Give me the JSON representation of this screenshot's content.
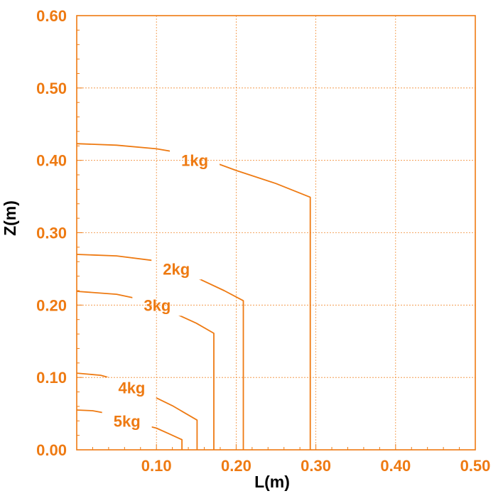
{
  "chart_data": {
    "type": "line",
    "title": "",
    "xlabel": "L(m)",
    "ylabel": "Z(m)",
    "xlim": [
      0,
      0.5
    ],
    "ylim": [
      0,
      0.6
    ],
    "x_ticks": [
      "0.10",
      "0.20",
      "0.30",
      "0.40",
      "0.50"
    ],
    "y_ticks": [
      "0.00",
      "0.10",
      "0.20",
      "0.30",
      "0.40",
      "0.50",
      "0.60"
    ],
    "grid": true,
    "color": "#ee7a12",
    "series": [
      {
        "name": "1kg",
        "label_at": [
          0.148,
          0.4
        ],
        "points": [
          [
            0,
            0.423
          ],
          [
            0.05,
            0.421
          ],
          [
            0.1,
            0.416
          ],
          [
            0.148,
            0.407
          ],
          [
            0.2,
            0.386
          ],
          [
            0.25,
            0.368
          ],
          [
            0.293,
            0.349
          ],
          [
            0.293,
            0
          ]
        ]
      },
      {
        "name": "2kg",
        "label_at": [
          0.125,
          0.25
        ],
        "points": [
          [
            0,
            0.27
          ],
          [
            0.05,
            0.268
          ],
          [
            0.1,
            0.261
          ],
          [
            0.125,
            0.25
          ],
          [
            0.15,
            0.238
          ],
          [
            0.185,
            0.22
          ],
          [
            0.209,
            0.206
          ],
          [
            0.209,
            0
          ]
        ]
      },
      {
        "name": "3kg",
        "label_at": [
          0.101,
          0.2
        ],
        "points": [
          [
            0,
            0.219
          ],
          [
            0.05,
            0.215
          ],
          [
            0.08,
            0.208
          ],
          [
            0.101,
            0.2
          ],
          [
            0.12,
            0.19
          ],
          [
            0.15,
            0.175
          ],
          [
            0.172,
            0.161
          ],
          [
            0.172,
            0
          ]
        ]
      },
      {
        "name": "4kg",
        "label_at": [
          0.069,
          0.086
        ],
        "points": [
          [
            0,
            0.106
          ],
          [
            0.03,
            0.103
          ],
          [
            0.05,
            0.097
          ],
          [
            0.069,
            0.086
          ],
          [
            0.09,
            0.077
          ],
          [
            0.12,
            0.061
          ],
          [
            0.151,
            0.041
          ],
          [
            0.151,
            0
          ]
        ]
      },
      {
        "name": "5kg",
        "label_at": [
          0.063,
          0.04
        ],
        "points": [
          [
            0,
            0.055
          ],
          [
            0.02,
            0.054
          ],
          [
            0.04,
            0.05
          ],
          [
            0.063,
            0.04
          ],
          [
            0.1,
            0.03
          ],
          [
            0.116,
            0.022
          ],
          [
            0.132,
            0.014
          ],
          [
            0.132,
            0
          ]
        ]
      }
    ]
  }
}
